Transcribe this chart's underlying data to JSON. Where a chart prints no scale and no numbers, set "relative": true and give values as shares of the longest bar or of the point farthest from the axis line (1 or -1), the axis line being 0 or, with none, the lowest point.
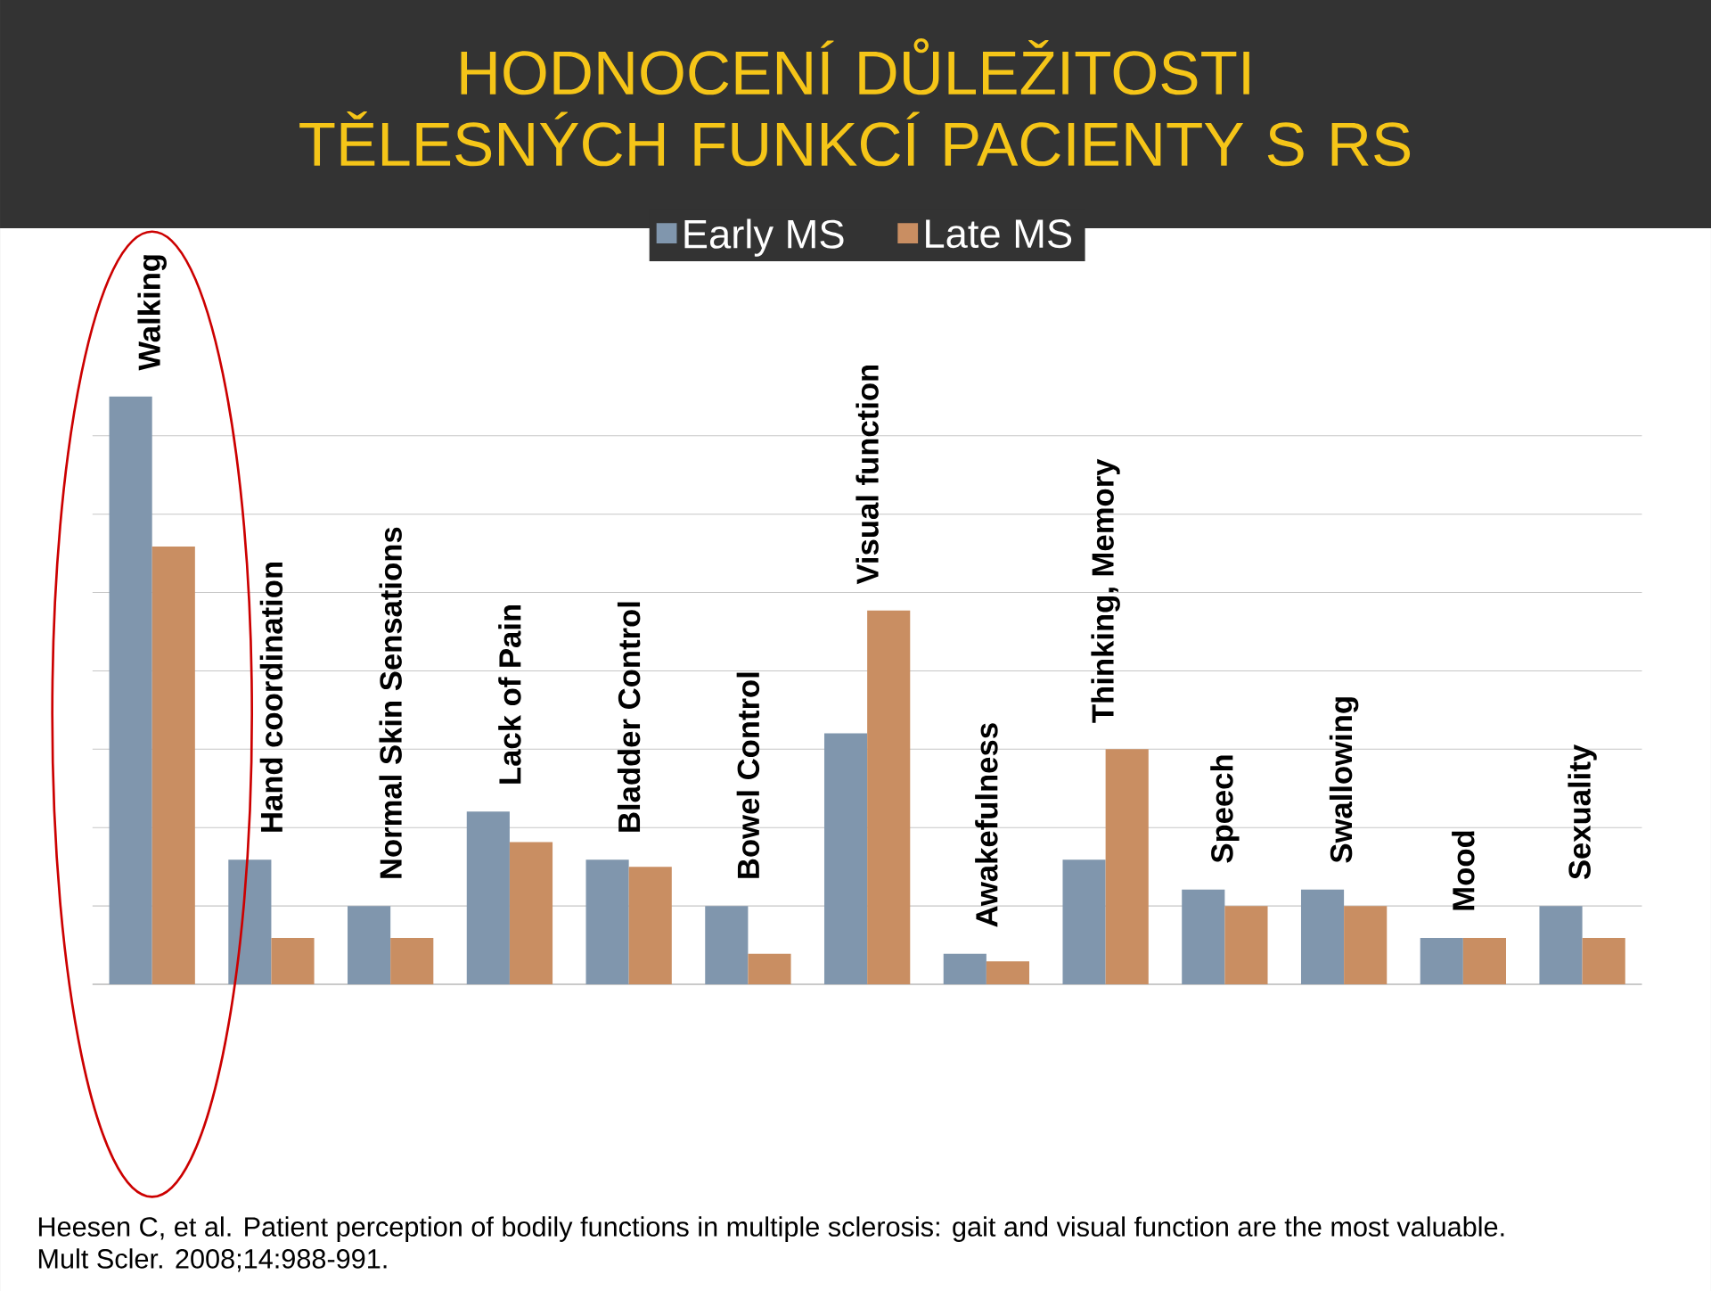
{
  "chart_data": {
    "type": "bar",
    "title": "HODNOCENÍ DŮLEŽITOSTI TĚLESNÝCH FUNKCÍ PACIENTY S RS",
    "relative": true,
    "grid": "y",
    "legend": "top",
    "categories": [
      "Walking",
      "Hand coordination",
      "Normal Skin Sensations",
      "Lack of Pain",
      "Bladder Control",
      "Bowel Control",
      "Visual function",
      "Awakefulness",
      "Thinking, Memory",
      "Speech",
      "Swallowing",
      "Mood",
      "Sexuality"
    ],
    "series": [
      {
        "name": "Early MS",
        "color": "#8096ad",
        "values": [
          1,
          0.212,
          0.133,
          0.294,
          0.212,
          0.133,
          0.427,
          0.052,
          0.212,
          0.161,
          0.161,
          0.079,
          0.133
        ]
      },
      {
        "name": "Late MS",
        "color": "#c98e62",
        "values": [
          0.745,
          0.079,
          0.079,
          0.242,
          0.2,
          0.052,
          0.636,
          0.039,
          0.4,
          0.133,
          0.133,
          0.079,
          0.079
        ]
      }
    ],
    "annotations": [
      "Heesen C, et al. Patient perception of bodily functions in multiple sclerosis: gait and visual function are the most valuable.",
      "Mult Scler. 2008;14:988-991."
    ]
  }
}
